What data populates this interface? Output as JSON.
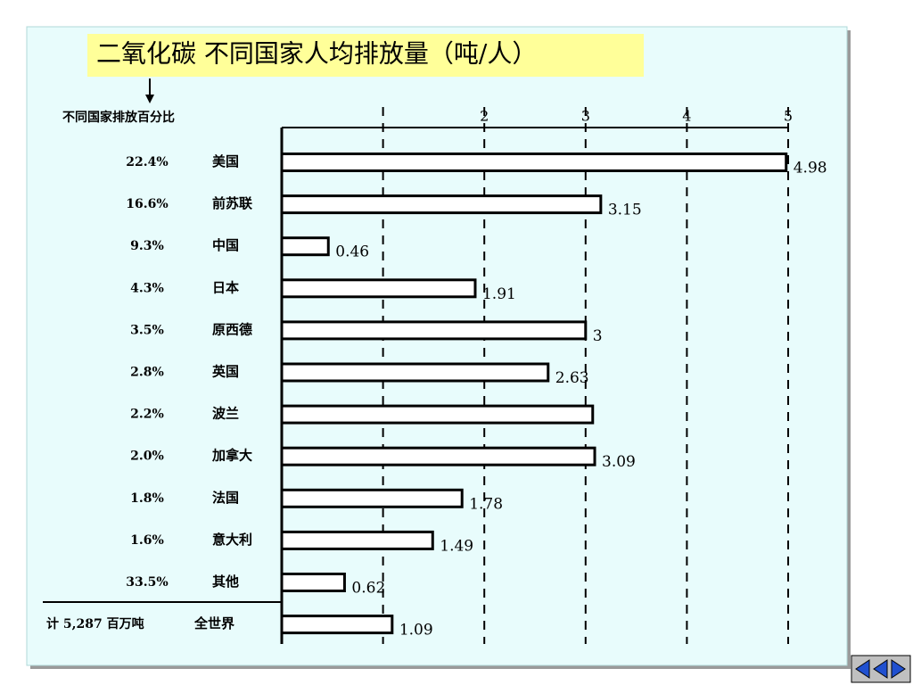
{
  "chart_data": {
    "type": "hbar",
    "title": "二氧化碳    不同国家人均排放量（吨/人）",
    "share_header": "不同国家排放百分比",
    "categories": [
      "美国",
      "前苏联",
      "中国",
      "日本",
      "原西德",
      "英国",
      "波兰",
      "加拿大",
      "法国",
      "意大利",
      "其他",
      "全世界"
    ],
    "shares": [
      "22.4%",
      "16.6%",
      "9.3%",
      "4.3%",
      "3.5%",
      "2.8%",
      "2.2%",
      "2.0%",
      "1.8%",
      "1.6%",
      "33.5%",
      "计 5,287 百万吨"
    ],
    "values": [
      4.98,
      3.15,
      0.46,
      1.91,
      3,
      2.63,
      3.07,
      3.09,
      1.78,
      1.49,
      0.62,
      1.09
    ],
    "value_labels": [
      "4.98",
      "3.15",
      "0.46",
      "1.91",
      "3",
      "2.63",
      null,
      "3.09",
      "1.78",
      "1.49",
      "0.62",
      "1.09"
    ],
    "xlim": [
      0,
      5
    ],
    "xticks": [
      {
        "value": 1,
        "label": null
      },
      2,
      3,
      4,
      5
    ],
    "grid": true,
    "color": "#ffffff"
  }
}
